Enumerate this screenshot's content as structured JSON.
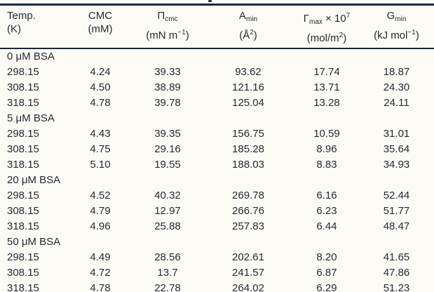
{
  "colors": {
    "rule": "#17263f",
    "text": "#242831",
    "background": "#fcfbf6"
  },
  "table": {
    "header": {
      "col1": {
        "main": "Temp.",
        "unit": "(K)"
      },
      "col2": {
        "main": "CMC",
        "unit": "(mM)"
      },
      "col3": {
        "main": "Π",
        "sub": "cmc",
        "unit_pre": "(mN m",
        "unit_sup": "−1",
        "unit_post": ")"
      },
      "col4": {
        "main": "A",
        "sub": "min",
        "unit_pre": "(Å",
        "unit_sup": "2",
        "unit_post": ")"
      },
      "col5": {
        "main": "Γ",
        "sub": "max",
        "mid": " × 10",
        "sup": "7",
        "unit_pre": "(mol/m",
        "unit_sup": "2",
        "unit_post": ")"
      },
      "col6": {
        "main": "G",
        "sub": "min",
        "unit_pre": "(kJ mol",
        "unit_sup": "−1",
        "unit_post": ")"
      }
    },
    "sections": [
      {
        "label": "0 μM BSA",
        "rows": [
          [
            "298.15",
            "4.24",
            "39.33",
            "93.62",
            "17.74",
            "18.87"
          ],
          [
            "308.15",
            "4.50",
            "38.89",
            "121.16",
            "13.71",
            "24.30"
          ],
          [
            "318.15",
            "4.78",
            "39.78",
            "125.04",
            "13.28",
            "24.11"
          ]
        ]
      },
      {
        "label": "5 μM BSA",
        "rows": [
          [
            "298.15",
            "4.43",
            "39.35",
            "156.75",
            "10.59",
            "31.01"
          ],
          [
            "308.15",
            "4.75",
            "29.16",
            "185.28",
            "8.96",
            "35.64"
          ],
          [
            "318.15",
            "5.10",
            "19.55",
            "188.03",
            "8.83",
            "34.93"
          ]
        ]
      },
      {
        "label": "20 μM BSA",
        "rows": [
          [
            "298.15",
            "4.52",
            "40.32",
            "269.78",
            "6.16",
            "52.44"
          ],
          [
            "308.15",
            "4.79",
            "12.97",
            "266.76",
            "6.23",
            "51.77"
          ],
          [
            "318.15",
            "4.96",
            "25.88",
            "257.83",
            "6.44",
            "48.47"
          ]
        ]
      },
      {
        "label": "50 μM BSA",
        "rows": [
          [
            "298.15",
            "4.49",
            "28.56",
            "202.61",
            "8.20",
            "41.65"
          ],
          [
            "308.15",
            "4.72",
            "13.7",
            "241.57",
            "6.87",
            "47.86"
          ],
          [
            "318.15",
            "4.78",
            "22.78",
            "264.02",
            "6.29",
            "51.23"
          ]
        ]
      }
    ]
  }
}
